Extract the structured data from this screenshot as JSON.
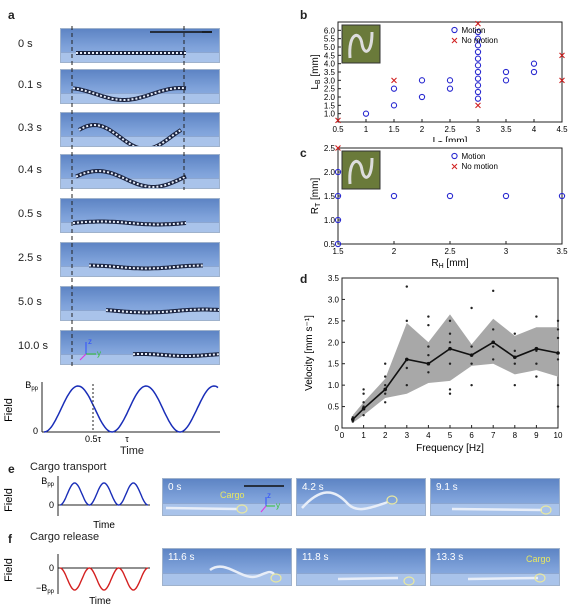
{
  "panel_a": {
    "label": "a",
    "times": [
      "0 s",
      "0.1 s",
      "0.3 s",
      "0.4 s",
      "0.5 s",
      "2.5 s",
      "5.0 s",
      "10.0 s"
    ],
    "axis": {
      "z": "z",
      "y": "y"
    },
    "field_plot": {
      "ylabel": "Field",
      "xlabel": "Time",
      "ytick_top": "B",
      "ytick_top_sub": "pp",
      "ytick_zero": "0",
      "xtick_half": "0.5τ",
      "xtick_tau": "τ"
    }
  },
  "panel_b": {
    "label": "b"
  },
  "panel_c": {
    "label": "c"
  },
  "panel_d": {
    "label": "d"
  },
  "panel_e": {
    "label": "e",
    "title": "Cargo transport",
    "field_ylabel": "Field",
    "field_xlabel": "Time",
    "ytick_top": "B",
    "ytick_top_sub": "pp",
    "ytick_zero": "0",
    "frames": [
      "0 s",
      "4.2 s",
      "9.1 s"
    ],
    "cargo_label": "Cargo",
    "axis": {
      "z": "z",
      "y": "y"
    }
  },
  "panel_f": {
    "label": "f",
    "title": "Cargo release",
    "field_ylabel": "Field",
    "field_xlabel": "Time",
    "ytick_zero": "0",
    "ytick_bottom": "−B",
    "ytick_bottom_sub": "pp",
    "frames": [
      "11.6 s",
      "11.8 s",
      "13.3 s"
    ],
    "cargo_label": "Cargo"
  },
  "chart_data": [
    {
      "type": "scatter",
      "xlabel": "L_T [mm]",
      "ylabel": "L_B [mm]",
      "xlim": [
        0.5,
        4.5
      ],
      "ylim": [
        0.5,
        6.5
      ],
      "xticks": [
        "0.5",
        "1",
        "1.5",
        "2",
        "2.5",
        "3",
        "3.5",
        "4",
        "4.5"
      ],
      "yticks": [
        "1.0",
        "1.5",
        "2.0",
        "2.5",
        "3.0",
        "3.5",
        "4.0",
        "4.5",
        "5.0",
        "5.5",
        "6.0"
      ],
      "legend": [
        "Motion",
        "No motion"
      ],
      "legend_position": "top-right",
      "series": [
        {
          "name": "Motion",
          "marker": "circle",
          "color": "#2a2ad0",
          "points": [
            [
              1.0,
              1.0
            ],
            [
              1.5,
              1.5
            ],
            [
              1.5,
              2.5
            ],
            [
              2.0,
              2.0
            ],
            [
              2.0,
              3.0
            ],
            [
              2.5,
              2.5
            ],
            [
              2.5,
              3.0
            ],
            [
              3.0,
              1.9
            ],
            [
              3.0,
              2.3
            ],
            [
              3.0,
              2.7
            ],
            [
              3.0,
              3.1
            ],
            [
              3.0,
              3.5
            ],
            [
              3.0,
              3.9
            ],
            [
              3.0,
              4.3
            ],
            [
              3.0,
              4.7
            ],
            [
              3.0,
              5.1
            ],
            [
              3.0,
              5.5
            ],
            [
              3.0,
              5.9
            ],
            [
              3.5,
              3.0
            ],
            [
              3.5,
              3.5
            ],
            [
              4.0,
              3.5
            ],
            [
              4.0,
              4.0
            ]
          ]
        },
        {
          "name": "No motion",
          "marker": "x",
          "color": "#d02020",
          "points": [
            [
              0.5,
              0.6
            ],
            [
              1.5,
              3.0
            ],
            [
              3.0,
              1.5
            ],
            [
              3.0,
              6.4
            ],
            [
              4.5,
              3.0
            ],
            [
              4.5,
              4.5
            ]
          ]
        }
      ]
    },
    {
      "type": "scatter",
      "xlabel": "R_H [mm]",
      "ylabel": "R_T [mm]",
      "xlim": [
        1.5,
        3.5
      ],
      "ylim": [
        0.5,
        2.5
      ],
      "xticks": [
        "1.5",
        "2",
        "2.5",
        "3",
        "3.5"
      ],
      "yticks": [
        "0.5",
        "1.0",
        "1.5",
        "2.0",
        "2.5"
      ],
      "legend": [
        "Motion",
        "No motion"
      ],
      "legend_position": "top-right",
      "series": [
        {
          "name": "Motion",
          "marker": "circle",
          "color": "#2a2ad0",
          "points": [
            [
              1.5,
              0.5
            ],
            [
              1.5,
              1.0
            ],
            [
              1.5,
              1.5
            ],
            [
              1.5,
              2.0
            ],
            [
              2.0,
              1.5
            ],
            [
              2.5,
              1.5
            ],
            [
              3.0,
              1.5
            ],
            [
              3.5,
              1.5
            ]
          ]
        },
        {
          "name": "No motion",
          "marker": "x",
          "color": "#d02020",
          "points": [
            [
              1.5,
              2.5
            ]
          ]
        }
      ]
    },
    {
      "type": "line",
      "xlabel": "Frequency [Hz]",
      "ylabel": "Velocity [mm s⁻¹]",
      "xlim": [
        0,
        10
      ],
      "ylim": [
        0,
        3.5
      ],
      "xticks": [
        "0",
        "1",
        "2",
        "3",
        "4",
        "5",
        "6",
        "7",
        "8",
        "9",
        "10"
      ],
      "yticks": [
        "0",
        "0.5",
        "1.0",
        "1.5",
        "2.0",
        "2.5",
        "3.0",
        "3.5"
      ],
      "x": [
        0.5,
        1,
        2,
        3,
        4,
        5,
        6,
        7,
        8,
        9,
        10
      ],
      "mean": [
        0.2,
        0.45,
        0.9,
        1.6,
        1.5,
        1.85,
        1.7,
        2.0,
        1.65,
        1.85,
        1.75
      ],
      "band_upper": [
        0.3,
        0.6,
        1.15,
        2.45,
        2.0,
        2.65,
        1.95,
        2.55,
        2.15,
        2.35,
        2.35
      ],
      "band_lower": [
        0.12,
        0.3,
        0.7,
        0.8,
        1.05,
        1.1,
        1.45,
        1.5,
        1.25,
        1.35,
        1.2
      ],
      "points": [
        [
          0.5,
          0.15
        ],
        [
          0.5,
          0.2
        ],
        [
          0.5,
          0.25
        ],
        [
          1,
          0.3
        ],
        [
          1,
          0.5
        ],
        [
          1,
          0.6
        ],
        [
          1,
          0.8
        ],
        [
          1,
          0.9
        ],
        [
          2,
          0.6
        ],
        [
          2,
          0.8
        ],
        [
          2,
          1.0
        ],
        [
          2,
          1.2
        ],
        [
          2,
          1.5
        ],
        [
          3,
          1.0
        ],
        [
          3,
          1.4
        ],
        [
          3,
          1.6
        ],
        [
          3,
          2.5
        ],
        [
          3,
          3.3
        ],
        [
          4,
          1.3
        ],
        [
          4,
          1.5
        ],
        [
          4,
          1.7
        ],
        [
          4,
          1.9
        ],
        [
          4,
          2.4
        ],
        [
          4,
          2.6
        ],
        [
          5,
          0.8
        ],
        [
          5,
          0.9
        ],
        [
          5,
          1.5
        ],
        [
          5,
          2.0
        ],
        [
          5,
          2.2
        ],
        [
          5,
          2.5
        ],
        [
          6,
          1.0
        ],
        [
          6,
          1.5
        ],
        [
          6,
          1.7
        ],
        [
          6,
          1.9
        ],
        [
          6,
          2.8
        ],
        [
          7,
          1.6
        ],
        [
          7,
          1.9
        ],
        [
          7,
          2.3
        ],
        [
          7,
          3.2
        ],
        [
          8,
          1.0
        ],
        [
          8,
          1.5
        ],
        [
          8,
          1.8
        ],
        [
          8,
          2.2
        ],
        [
          9,
          1.2
        ],
        [
          9,
          1.5
        ],
        [
          9,
          1.8
        ],
        [
          9,
          2.6
        ],
        [
          10,
          0.5
        ],
        [
          10,
          1.0
        ],
        [
          10,
          1.6
        ],
        [
          10,
          2.1
        ],
        [
          10,
          2.3
        ],
        [
          10,
          2.5
        ]
      ]
    }
  ]
}
